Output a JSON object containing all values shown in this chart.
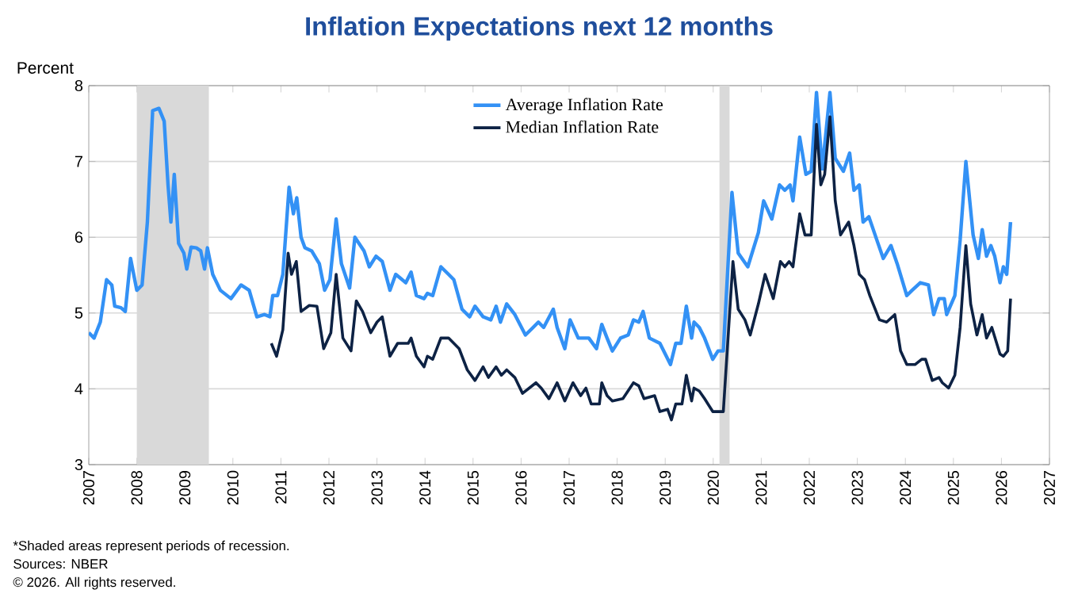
{
  "chart_data": {
    "type": "line",
    "title": "Inflation Expectations next 12 months",
    "ylabel": "Percent",
    "xlim": [
      2007,
      2027
    ],
    "xticks": [
      {
        "value": 2007,
        "label": "2007"
      },
      {
        "value": 2008,
        "label": "2008"
      },
      {
        "value": 2009,
        "label": "2009"
      },
      {
        "value": 2010,
        "label": "2010"
      },
      {
        "value": 2011,
        "label": "2011"
      },
      {
        "value": 2012,
        "label": "2012"
      },
      {
        "value": 2013,
        "label": "2013"
      },
      {
        "value": 2014,
        "label": "2014"
      },
      {
        "value": 2015,
        "label": "2015"
      },
      {
        "value": 2016,
        "label": "2016"
      },
      {
        "value": 2017,
        "label": "2017"
      },
      {
        "value": 2018,
        "label": "2018"
      },
      {
        "value": 2019,
        "label": "2019"
      },
      {
        "value": 2020,
        "label": "2020"
      },
      {
        "value": 2021,
        "label": "2021"
      },
      {
        "value": 2022,
        "label": "2022"
      },
      {
        "value": 2023,
        "label": "2023"
      },
      {
        "value": 2024,
        "label": "2024"
      },
      {
        "value": 2025,
        "label": "2025"
      },
      {
        "value": 2026,
        "label": "2026"
      },
      {
        "value": 2027,
        "label": "2027"
      }
    ],
    "ylim": [
      3,
      8
    ],
    "yticks": [
      3,
      4,
      5,
      6,
      7,
      8
    ],
    "grid": "y",
    "legend": "top",
    "bands": [
      {
        "axis": "x",
        "from": 2008.0,
        "to": 2009.5,
        "color": "#d9d9d9"
      },
      {
        "axis": "x",
        "from": 2020.13,
        "to": 2020.34,
        "color": "#d9d9d9"
      }
    ],
    "series": [
      {
        "name": "Average Inflation Rate",
        "color": "#3391f5",
        "x": [
          2007.0,
          2007.11,
          2007.24,
          2007.37,
          2007.48,
          2007.54,
          2007.67,
          2007.76,
          2007.87,
          2008.0,
          2008.11,
          2008.22,
          2008.33,
          2008.46,
          2008.57,
          2008.65,
          2008.71,
          2008.78,
          2008.87,
          2008.98,
          2009.04,
          2009.13,
          2009.24,
          2009.33,
          2009.41,
          2009.47,
          2009.58,
          2009.74,
          2009.96,
          2010.17,
          2010.34,
          2010.5,
          2010.66,
          2010.77,
          2010.83,
          2010.93,
          2011.04,
          2011.17,
          2011.26,
          2011.33,
          2011.42,
          2011.5,
          2011.64,
          2011.8,
          2011.91,
          2012.02,
          2012.15,
          2012.26,
          2012.43,
          2012.54,
          2012.73,
          2012.84,
          2012.98,
          2013.11,
          2013.27,
          2013.39,
          2013.6,
          2013.71,
          2013.82,
          2013.98,
          2014.05,
          2014.16,
          2014.33,
          2014.49,
          2014.6,
          2014.77,
          2014.93,
          2015.04,
          2015.21,
          2015.37,
          2015.48,
          2015.57,
          2015.7,
          2015.87,
          2016.09,
          2016.25,
          2016.36,
          2016.47,
          2016.67,
          2016.75,
          2016.91,
          2017.02,
          2017.19,
          2017.41,
          2017.57,
          2017.68,
          2017.79,
          2017.9,
          2018.07,
          2018.23,
          2018.34,
          2018.45,
          2018.54,
          2018.67,
          2018.89,
          2019.11,
          2019.22,
          2019.33,
          2019.44,
          2019.55,
          2019.6,
          2019.71,
          2019.82,
          2019.99,
          2020.1,
          2020.21,
          2020.39,
          2020.52,
          2020.72,
          2020.94,
          2021.05,
          2021.22,
          2021.38,
          2021.49,
          2021.6,
          2021.66,
          2021.8,
          2021.93,
          2022.04,
          2022.15,
          2022.27,
          2022.43,
          2022.54,
          2022.71,
          2022.84,
          2022.93,
          2023.04,
          2023.12,
          2023.24,
          2023.43,
          2023.54,
          2023.7,
          2023.83,
          2024.03,
          2024.14,
          2024.31,
          2024.48,
          2024.59,
          2024.7,
          2024.81,
          2024.86,
          2025.03,
          2025.14,
          2025.26,
          2025.41,
          2025.52,
          2025.6,
          2025.69,
          2025.78,
          2025.86,
          2025.97,
          2026.04,
          2026.11,
          2026.19
        ],
        "values": [
          4.74,
          4.67,
          4.88,
          5.44,
          5.37,
          5.09,
          5.07,
          5.02,
          5.72,
          5.3,
          5.37,
          6.2,
          7.67,
          7.7,
          7.53,
          6.69,
          6.2,
          6.83,
          5.92,
          5.79,
          5.58,
          5.87,
          5.86,
          5.82,
          5.58,
          5.86,
          5.51,
          5.3,
          5.19,
          5.37,
          5.3,
          4.95,
          4.98,
          4.95,
          5.23,
          5.23,
          5.51,
          6.66,
          6.31,
          6.52,
          6.0,
          5.86,
          5.82,
          5.65,
          5.3,
          5.44,
          6.24,
          5.65,
          5.33,
          6.0,
          5.82,
          5.61,
          5.75,
          5.68,
          5.3,
          5.51,
          5.4,
          5.54,
          5.23,
          5.19,
          5.26,
          5.23,
          5.61,
          5.51,
          5.44,
          5.05,
          4.95,
          5.09,
          4.95,
          4.91,
          5.09,
          4.88,
          5.12,
          4.98,
          4.71,
          4.81,
          4.88,
          4.81,
          5.05,
          4.81,
          4.53,
          4.91,
          4.67,
          4.67,
          4.53,
          4.85,
          4.67,
          4.5,
          4.67,
          4.71,
          4.91,
          4.88,
          5.02,
          4.67,
          4.6,
          4.32,
          4.6,
          4.6,
          5.09,
          4.67,
          4.88,
          4.81,
          4.67,
          4.39,
          4.5,
          4.5,
          6.59,
          5.79,
          5.61,
          6.06,
          6.48,
          6.24,
          6.69,
          6.62,
          6.69,
          6.48,
          7.32,
          6.83,
          6.87,
          7.91,
          6.9,
          7.91,
          7.04,
          6.87,
          7.11,
          6.62,
          6.69,
          6.2,
          6.27,
          5.92,
          5.72,
          5.89,
          5.65,
          5.23,
          5.3,
          5.4,
          5.37,
          4.98,
          5.19,
          5.19,
          4.98,
          5.23,
          5.96,
          7.0,
          6.03,
          5.72,
          6.1,
          5.75,
          5.89,
          5.75,
          5.4,
          5.61,
          5.51,
          6.2
        ]
      },
      {
        "name": "Median Inflation Rate",
        "color": "#0d2244",
        "x": [
          2010.8,
          2010.91,
          2011.04,
          2011.15,
          2011.22,
          2011.32,
          2011.42,
          2011.59,
          2011.75,
          2011.89,
          2012.04,
          2012.15,
          2012.29,
          2012.46,
          2012.57,
          2012.7,
          2012.87,
          2013.0,
          2013.11,
          2013.27,
          2013.43,
          2013.65,
          2013.71,
          2013.82,
          2013.98,
          2014.05,
          2014.16,
          2014.33,
          2014.49,
          2014.71,
          2014.88,
          2015.04,
          2015.21,
          2015.32,
          2015.48,
          2015.59,
          2015.7,
          2015.87,
          2016.03,
          2016.31,
          2016.42,
          2016.58,
          2016.75,
          2016.91,
          2017.08,
          2017.24,
          2017.35,
          2017.46,
          2017.63,
          2017.68,
          2017.79,
          2017.9,
          2018.12,
          2018.34,
          2018.45,
          2018.56,
          2018.78,
          2018.89,
          2019.05,
          2019.13,
          2019.22,
          2019.35,
          2019.44,
          2019.55,
          2019.6,
          2019.71,
          2019.82,
          2019.99,
          2020.21,
          2020.41,
          2020.52,
          2020.66,
          2020.77,
          2020.94,
          2021.08,
          2021.25,
          2021.4,
          2021.49,
          2021.58,
          2021.66,
          2021.8,
          2021.91,
          2022.04,
          2022.15,
          2022.24,
          2022.32,
          2022.43,
          2022.54,
          2022.65,
          2022.82,
          2022.93,
          2023.04,
          2023.15,
          2023.26,
          2023.46,
          2023.61,
          2023.78,
          2023.9,
          2024.03,
          2024.2,
          2024.34,
          2024.42,
          2024.56,
          2024.7,
          2024.77,
          2024.9,
          2025.03,
          2025.14,
          2025.26,
          2025.36,
          2025.49,
          2025.6,
          2025.69,
          2025.8,
          2025.97,
          2026.04,
          2026.13,
          2026.19
        ],
        "values": [
          4.6,
          4.43,
          4.78,
          5.79,
          5.51,
          5.68,
          5.02,
          5.1,
          5.09,
          4.53,
          4.74,
          5.51,
          4.67,
          4.5,
          5.16,
          5.02,
          4.74,
          4.88,
          4.95,
          4.43,
          4.6,
          4.6,
          4.67,
          4.43,
          4.29,
          4.43,
          4.39,
          4.67,
          4.67,
          4.53,
          4.25,
          4.11,
          4.29,
          4.15,
          4.29,
          4.18,
          4.25,
          4.15,
          3.94,
          4.08,
          4.01,
          3.87,
          4.08,
          3.84,
          4.08,
          3.91,
          4.01,
          3.8,
          3.8,
          4.08,
          3.91,
          3.84,
          3.87,
          4.08,
          4.04,
          3.87,
          3.91,
          3.7,
          3.73,
          3.59,
          3.8,
          3.8,
          4.18,
          3.84,
          4.01,
          3.97,
          3.87,
          3.7,
          3.7,
          5.68,
          5.05,
          4.91,
          4.71,
          5.12,
          5.51,
          5.19,
          5.68,
          5.61,
          5.68,
          5.61,
          6.31,
          6.03,
          6.03,
          7.49,
          6.69,
          6.83,
          7.59,
          6.48,
          6.03,
          6.2,
          5.89,
          5.51,
          5.44,
          5.23,
          4.91,
          4.88,
          4.98,
          4.5,
          4.32,
          4.32,
          4.39,
          4.39,
          4.11,
          4.15,
          4.08,
          4.01,
          4.18,
          4.81,
          5.89,
          5.12,
          4.71,
          4.98,
          4.67,
          4.81,
          4.46,
          4.43,
          4.5,
          5.19
        ]
      }
    ],
    "annotations": [
      "*Shaded areas represent periods of recession.",
      "Sources: NBER",
      "© 2026. All rights reserved."
    ]
  }
}
